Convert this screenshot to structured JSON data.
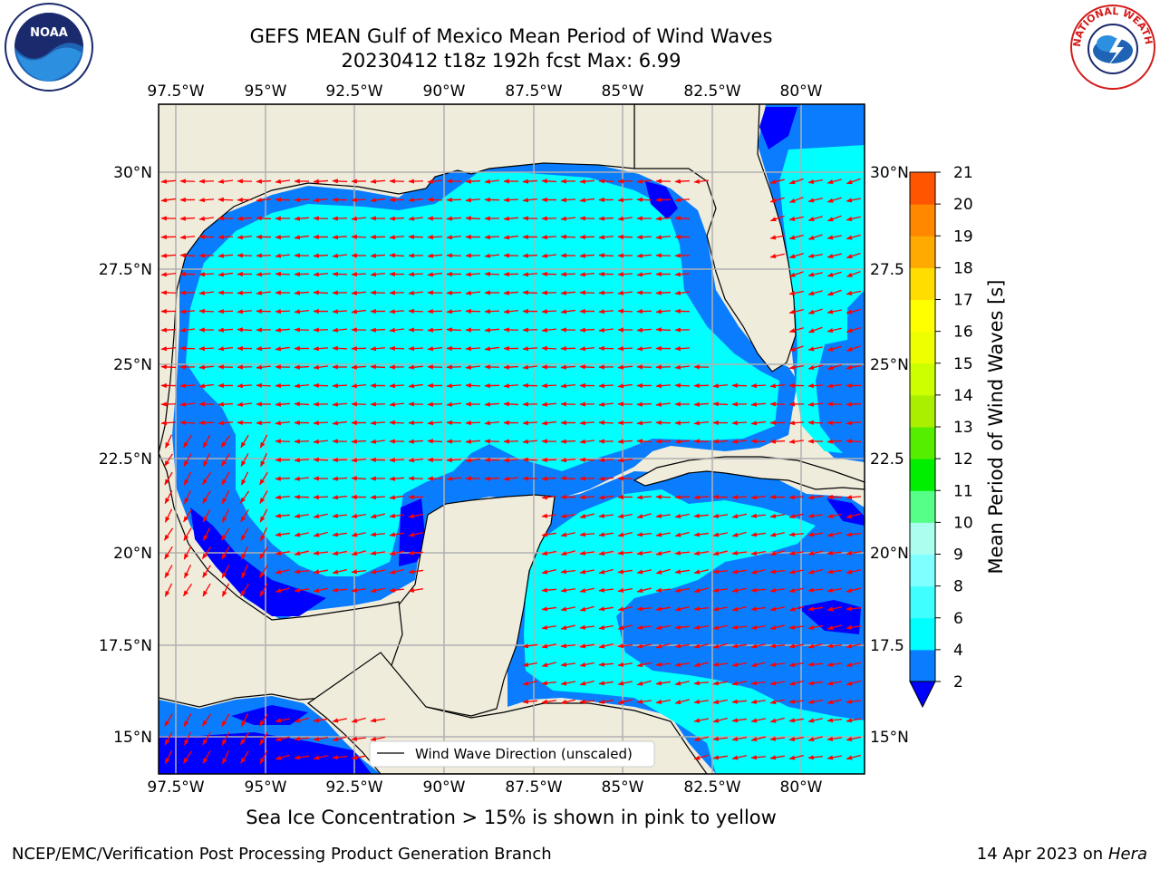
{
  "header": {
    "title_line1": "GEFS MEAN Gulf of Mexico Mean Period of Wind Waves",
    "title_line2": "20230412 t18z 192h fcst   Max: 6.99"
  },
  "logos": {
    "noaa": {
      "text": "NOAA",
      "icon": "noaa-logo-icon"
    },
    "nws": {
      "text": "NATIONAL WEATHER SERVICE",
      "icon": "nws-logo-icon"
    }
  },
  "map": {
    "lon_ticks": [
      "97.5°W",
      "95°W",
      "92.5°W",
      "90°W",
      "87.5°W",
      "85°W",
      "82.5°W",
      "80°W"
    ],
    "lat_ticks_left": [
      "30°N",
      "27.5°N",
      "25°N",
      "22.5°N",
      "20°N",
      "17.5°N",
      "15°N"
    ],
    "lat_ticks_right": [
      "30°N",
      "27.5",
      "25°N",
      "22.5",
      "20°N",
      "17.5",
      "15°N"
    ],
    "lon_range": [
      -98,
      -78.2
    ],
    "lat_range": [
      14,
      31.6
    ],
    "colors": {
      "land": "#efecdc",
      "ocean_light": "#00ffff",
      "ocean_mid": "#0a7dff",
      "ocean_deep": "#0000ff",
      "arrow": "#ff0000"
    },
    "legend": "Wind Wave Direction (unscaled)"
  },
  "colorbar": {
    "label": "Mean Period of Wind Waves [s]",
    "ticks": [
      "2",
      "4",
      "6",
      "8",
      "9",
      "10",
      "11",
      "12",
      "13",
      "14",
      "15",
      "16",
      "17",
      "18",
      "19",
      "20",
      "21"
    ],
    "colors": [
      "#0a7dff",
      "#00ffff",
      "#40ffff",
      "#7fffff",
      "#aaffee",
      "#55ff88",
      "#00ee00",
      "#55ee00",
      "#aaee00",
      "#ccff00",
      "#eeff00",
      "#ffff00",
      "#ffdd00",
      "#ffaa00",
      "#ff8800",
      "#ff5500",
      "#ff2200",
      "#ff0000"
    ],
    "under_color": "#0000ff"
  },
  "caption": "Sea Ice Concentration > 15% is shown in pink to yellow",
  "footer": {
    "left": "NCEP/EMC/Verification Post Processing Product Generation Branch",
    "right_date": "14 Apr 2023 on",
    "right_host": "Hera"
  }
}
